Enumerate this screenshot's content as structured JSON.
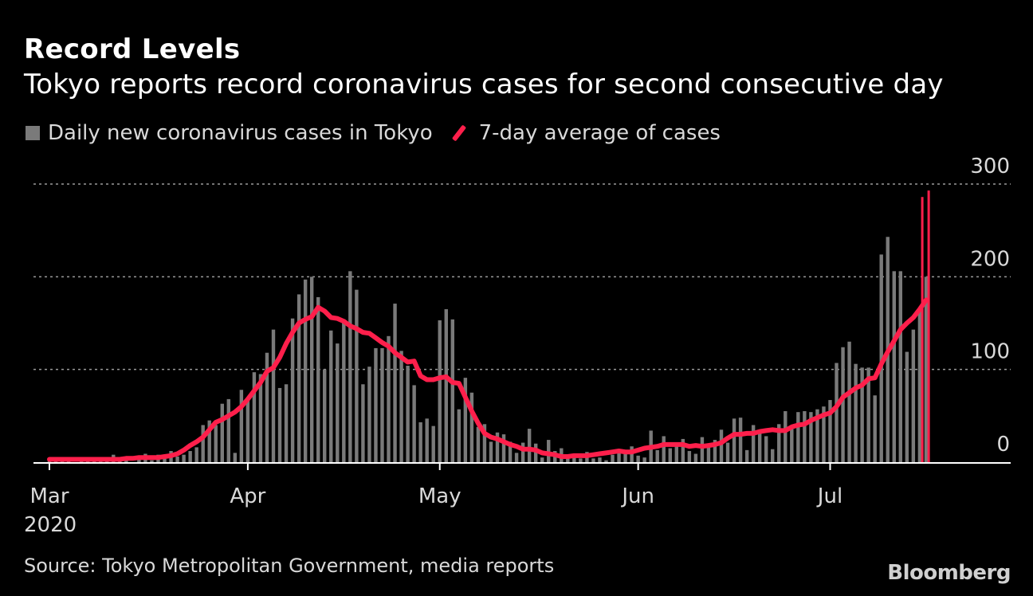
{
  "colors": {
    "background": "#000000",
    "bar": "#7a7a7a",
    "line": "#ff1f4b",
    "grid": "#9a9a9a",
    "text": "#d9d9d9"
  },
  "brand": "Bloomberg",
  "chart_data": {
    "type": "bar",
    "title": "Record Levels",
    "subtitle": "Tokyo reports record coronavirus cases for second consecutive day",
    "legend": [
      {
        "label": "Daily new coronavirus cases in Tokyo",
        "kind": "bar"
      },
      {
        "label": "7-day average of cases",
        "kind": "line"
      }
    ],
    "yticks": [
      0,
      100,
      200,
      300
    ],
    "ylim": [
      0,
      300
    ],
    "gridlines": [
      100,
      200,
      300
    ],
    "x_start_day": 0,
    "x_end_day": 140,
    "xticks": [
      {
        "label": "Mar",
        "day": 0
      },
      {
        "label": "Apr",
        "day": 31
      },
      {
        "label": "May",
        "day": 61
      },
      {
        "label": "Jun",
        "day": 92
      },
      {
        "label": "Jul",
        "day": 122
      }
    ],
    "year_label": "2020",
    "series": [
      {
        "name": "Daily new coronavirus cases in Tokyo",
        "type": "bar",
        "values": [
          3,
          2,
          1,
          3,
          0,
          2,
          1,
          2,
          3,
          1,
          8,
          3,
          2,
          0,
          7,
          9,
          2,
          8,
          5,
          12,
          6,
          8,
          12,
          16,
          40,
          45,
          40,
          63,
          68,
          10,
          78,
          68,
          97,
          95,
          118,
          143,
          80,
          84,
          155,
          181,
          197,
          200,
          178,
          100,
          142,
          128,
          154,
          206,
          186,
          84,
          103,
          123,
          123,
          136,
          171,
          120,
          104,
          83,
          43,
          47,
          39,
          153,
          165,
          154,
          57,
          91,
          75,
          38,
          41,
          22,
          32,
          30,
          22,
          10,
          21,
          36,
          20,
          5,
          24,
          12,
          15,
          8,
          8,
          4,
          11,
          4,
          5,
          2,
          8,
          14,
          9,
          17,
          7,
          5,
          34,
          13,
          28,
          15,
          20,
          25,
          12,
          9,
          27,
          16,
          24,
          35,
          21,
          47,
          48,
          13,
          40,
          31,
          28,
          14,
          41,
          55,
          39,
          54,
          55,
          54,
          57,
          60,
          67,
          107,
          124,
          130,
          106,
          102,
          102,
          72,
          224,
          243,
          206,
          206,
          119,
          143,
          165,
          200
        ]
      },
      {
        "name": "7-day average of cases",
        "type": "line",
        "values": [
          3,
          3,
          3,
          3,
          3,
          3,
          3,
          3,
          3,
          3,
          3,
          3,
          4,
          4,
          5,
          5,
          5,
          5,
          6,
          7,
          9,
          13,
          18,
          22,
          27,
          35,
          43,
          46,
          50,
          54,
          60,
          68,
          77,
          86,
          98,
          102,
          113,
          128,
          140,
          150,
          154,
          157,
          167,
          163,
          156,
          155,
          152,
          147,
          144,
          140,
          139,
          134,
          129,
          125,
          118,
          113,
          108,
          109,
          93,
          89,
          89,
          91,
          92,
          86,
          85,
          70,
          55,
          42,
          31,
          27,
          25,
          22,
          19,
          17,
          14,
          14,
          13,
          10,
          9,
          8,
          6,
          6,
          7,
          7,
          7,
          8,
          9,
          10,
          11,
          12,
          11,
          11,
          13,
          15,
          16,
          17,
          19,
          19,
          19,
          19,
          17,
          18,
          17,
          18,
          19,
          21,
          26,
          30,
          30,
          31,
          31,
          33,
          34,
          35,
          34,
          34,
          38,
          40,
          41,
          45,
          48,
          51,
          53,
          60,
          70,
          75,
          80,
          83,
          90,
          91,
          106,
          119,
          131,
          143,
          150,
          156,
          165,
          175
        ]
      }
    ],
    "markers": [
      {
        "day": 136.4,
        "value": 286
      },
      {
        "day": 137.4,
        "value": 293
      }
    ]
  },
  "source": "Source: Tokyo Metropolitan Government, media reports"
}
